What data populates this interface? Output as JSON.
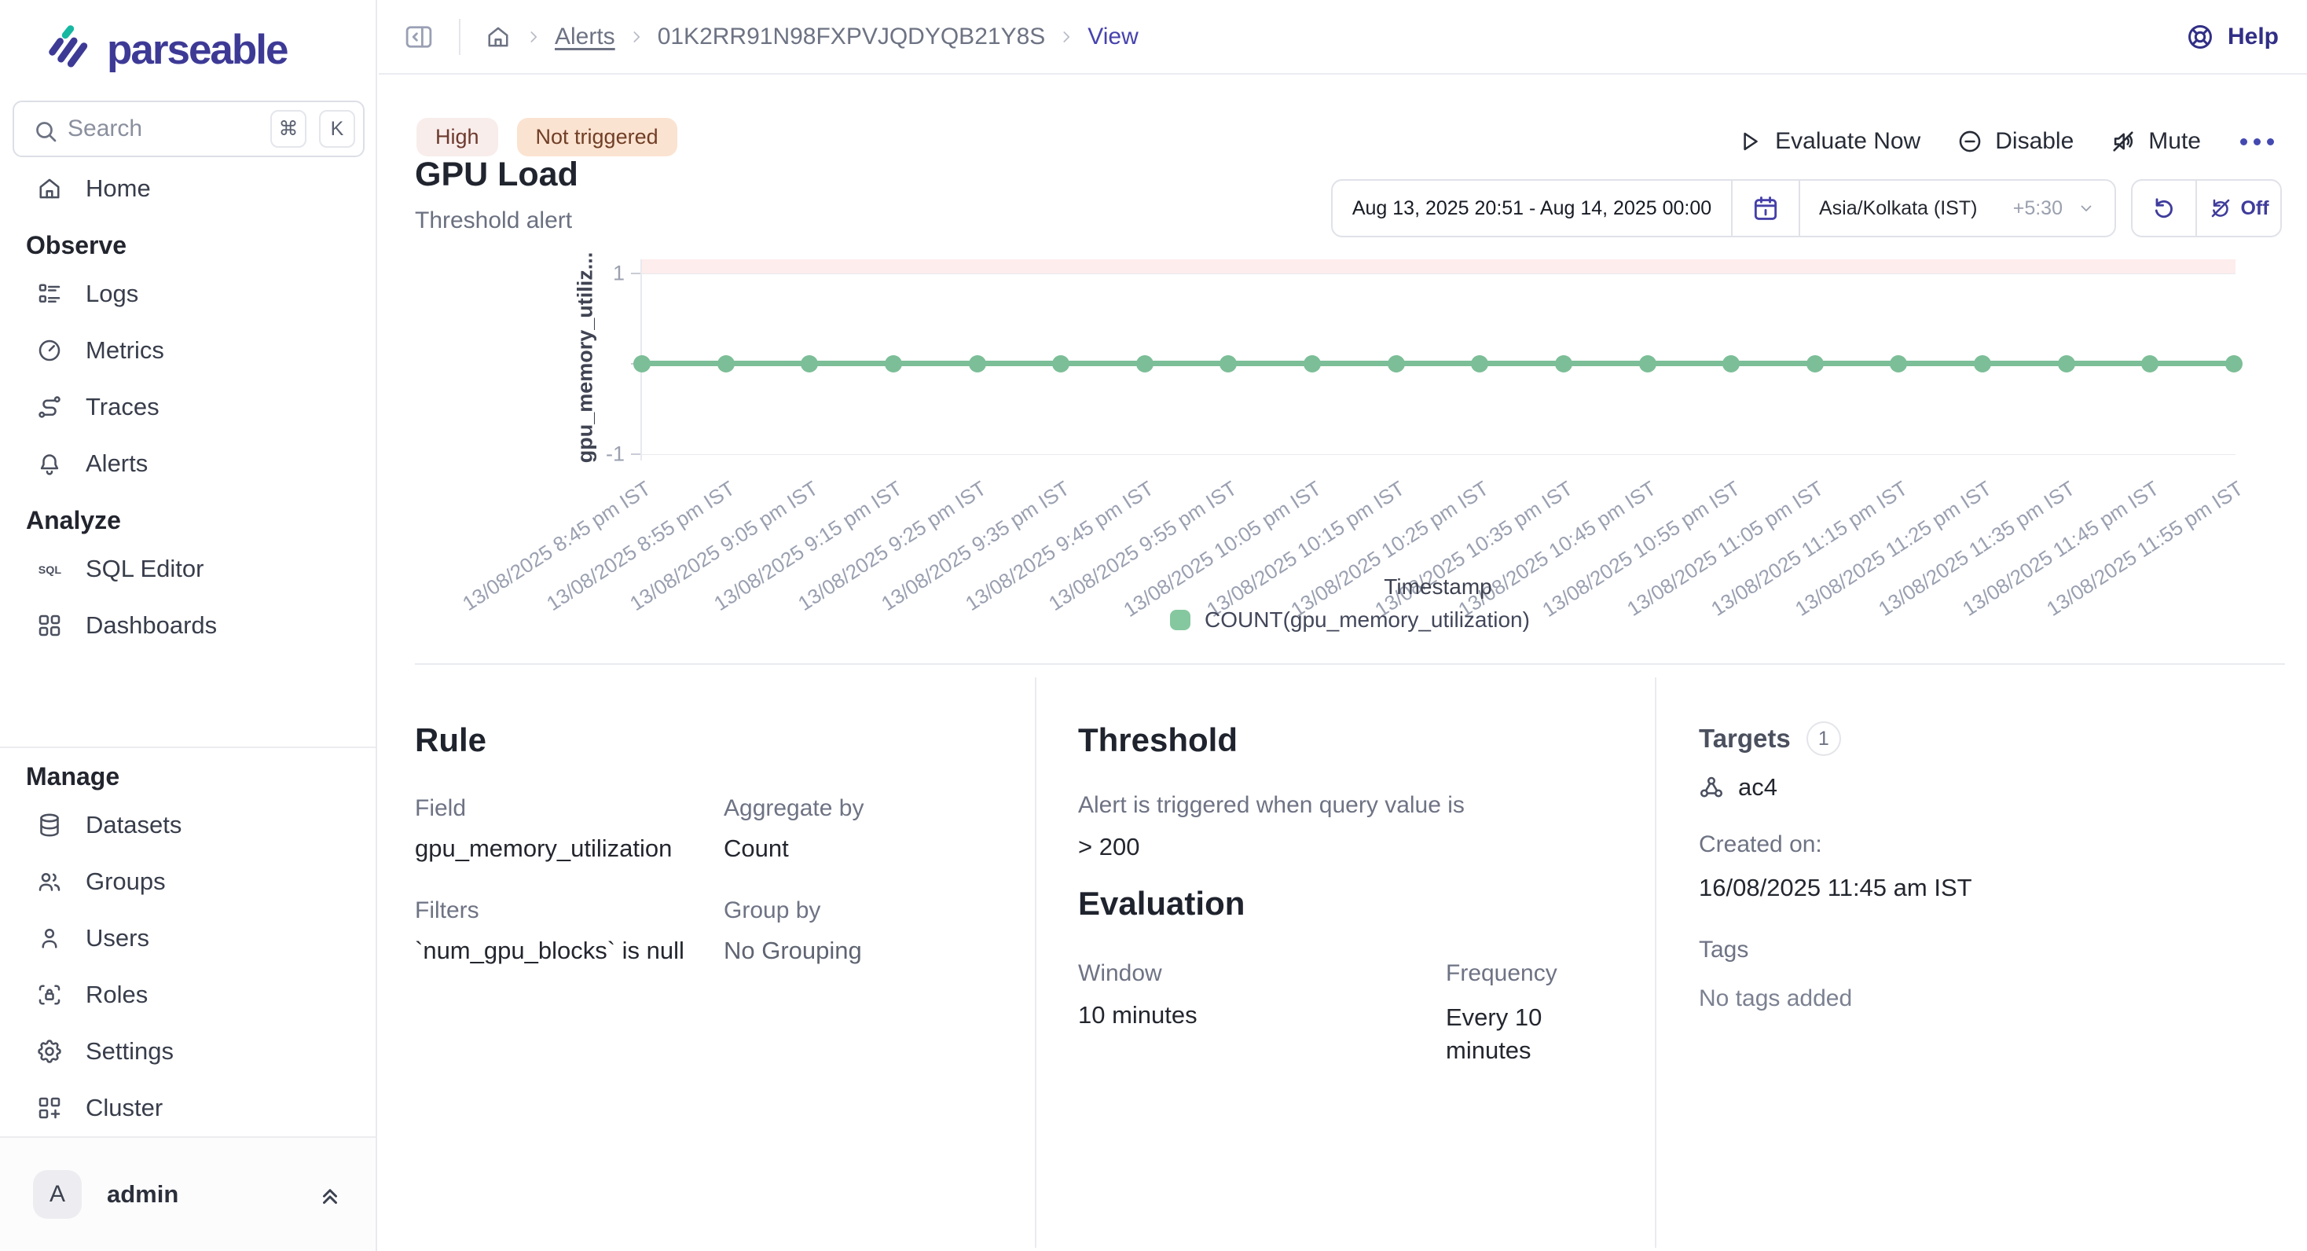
{
  "brand": {
    "name": "parseable",
    "indigo": "#3d3a96",
    "teal": "#16b8a2"
  },
  "sidebar": {
    "search": {
      "placeholder": "Search",
      "keys": [
        "⌘",
        "K"
      ]
    },
    "sections": [
      {
        "label": null,
        "items": [
          {
            "icon": "home",
            "label": "Home"
          }
        ]
      },
      {
        "label": "Observe",
        "items": [
          {
            "icon": "logs",
            "label": "Logs"
          },
          {
            "icon": "metrics",
            "label": "Metrics"
          },
          {
            "icon": "traces",
            "label": "Traces"
          },
          {
            "icon": "alerts",
            "label": "Alerts"
          }
        ]
      },
      {
        "label": "Analyze",
        "items": [
          {
            "icon": "sql",
            "label": "SQL Editor"
          },
          {
            "icon": "dashboards",
            "label": "Dashboards"
          }
        ]
      },
      {
        "label": "Manage",
        "divider_before": true,
        "items": [
          {
            "icon": "datasets",
            "label": "Datasets"
          },
          {
            "icon": "groups",
            "label": "Groups"
          },
          {
            "icon": "users",
            "label": "Users"
          },
          {
            "icon": "roles",
            "label": "Roles"
          },
          {
            "icon": "settings",
            "label": "Settings"
          },
          {
            "icon": "cluster",
            "label": "Cluster"
          }
        ]
      }
    ],
    "user": {
      "initial": "A",
      "name": "admin"
    }
  },
  "header": {
    "breadcrumb": {
      "alerts": "Alerts",
      "alert_id": "01K2RR91N98FXPVJQDYQB21Y8S",
      "view": "View"
    },
    "help": "Help"
  },
  "alert": {
    "severity": "High",
    "status": "Not triggered",
    "title": "GPU Load",
    "type": "Threshold alert",
    "actions": {
      "evaluate": "Evaluate Now",
      "disable": "Disable",
      "mute": "Mute"
    }
  },
  "timebar": {
    "range": "Aug 13, 2025 20:51 - Aug 14, 2025 00:00",
    "timezone": "Asia/Kolkata (IST)",
    "utc_offset": "+5:30",
    "refresh_toggle": "Off"
  },
  "chart_data": {
    "type": "line",
    "xlabel": "Timestamp",
    "ylabel": "gpu_memory_utiliz...",
    "ylim": [
      -1,
      1
    ],
    "yticks": [
      1,
      -1
    ],
    "grid": true,
    "legend_position": "bottom",
    "x": [
      "13/08/2025 8:45 pm IST",
      "13/08/2025 8:55 pm IST",
      "13/08/2025 9:05 pm IST",
      "13/08/2025 9:15 pm IST",
      "13/08/2025 9:25 pm IST",
      "13/08/2025 9:35 pm IST",
      "13/08/2025 9:45 pm IST",
      "13/08/2025 9:55 pm IST",
      "13/08/2025 10:05 pm IST",
      "13/08/2025 10:15 pm IST",
      "13/08/2025 10:25 pm IST",
      "13/08/2025 10:35 pm IST",
      "13/08/2025 10:45 pm IST",
      "13/08/2025 10:55 pm IST",
      "13/08/2025 11:05 pm IST",
      "13/08/2025 11:15 pm IST",
      "13/08/2025 11:25 pm IST",
      "13/08/2025 11:35 pm IST",
      "13/08/2025 11:45 pm IST",
      "13/08/2025 11:55 pm IST"
    ],
    "series": [
      {
        "name": "COUNT(gpu_memory_utilization)",
        "values": [
          0,
          0,
          0,
          0,
          0,
          0,
          0,
          0,
          0,
          0,
          0,
          0,
          0,
          0,
          0,
          0,
          0,
          0,
          0,
          0
        ],
        "color": "#7cbe97",
        "legend_color": "#85c89f"
      }
    ],
    "threshold_band": {
      "above_value": 1,
      "color": "#fdedec"
    }
  },
  "rule": {
    "heading": "Rule",
    "field_label": "Field",
    "field_value": "gpu_memory_utilization",
    "aggregate_label": "Aggregate by",
    "aggregate_value": "Count",
    "filters_label": "Filters",
    "filters_value": "`num_gpu_blocks` is null",
    "groupby_label": "Group by",
    "groupby_value": "No Grouping"
  },
  "threshold": {
    "heading": "Threshold",
    "description": "Alert is triggered when query value is",
    "condition": "> 200"
  },
  "evaluation": {
    "heading": "Evaluation",
    "window_label": "Window",
    "window_value": "10 minutes",
    "frequency_label": "Frequency",
    "frequency_value": "Every 10 minutes"
  },
  "targets": {
    "heading": "Targets",
    "count": "1",
    "items": [
      {
        "icon": "webhook",
        "name": "ac4"
      }
    ],
    "created_label": "Created on:",
    "created_value": "16/08/2025 11:45 am IST",
    "tags_label": "Tags",
    "tags_value": "No tags added"
  }
}
